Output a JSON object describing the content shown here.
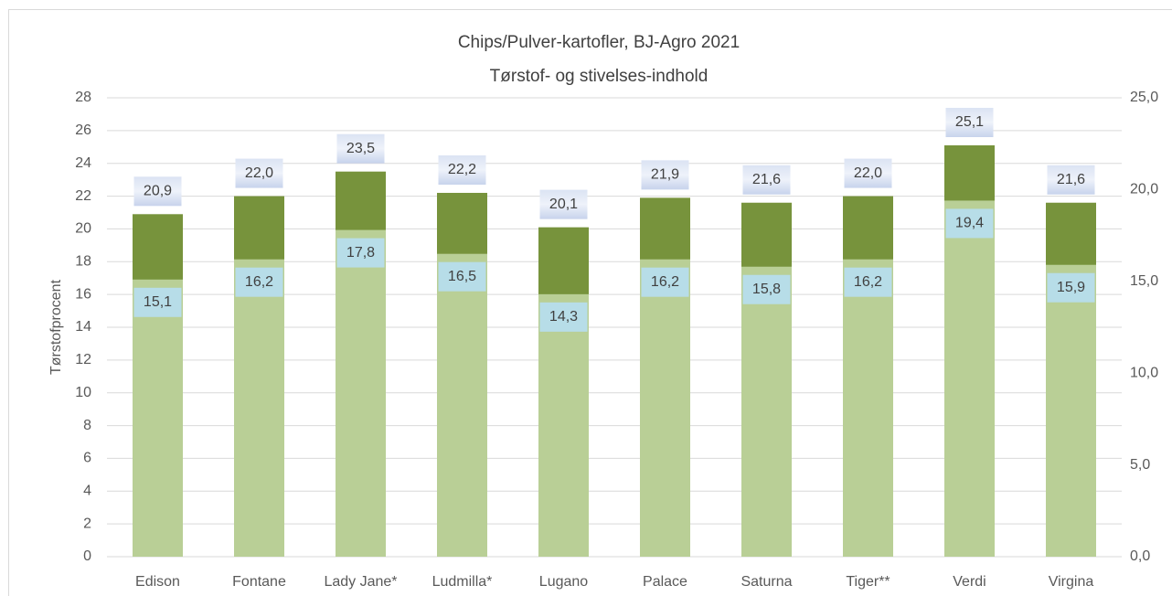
{
  "chart_data": {
    "type": "bar",
    "title": "Chips/Pulver-kartofler, BJ-Agro 2021",
    "subtitle": "Tørstof- og stivelses-indhold",
    "y_label": "Tørstofprocent",
    "categories": [
      "Edison",
      "Fontane",
      "Lady Jane*",
      "Ludmilla*",
      "Lugano",
      "Palace",
      "Saturna",
      "Tiger**",
      "Verdi",
      "Virgina"
    ],
    "series": [
      {
        "color": "#77933c",
        "axis": "y",
        "values": [
          20.9,
          22.0,
          23.5,
          22.2,
          20.1,
          21.9,
          21.6,
          22.0,
          25.1,
          21.6
        ],
        "value_labels": [
          "20,9",
          "22,0",
          "23,5",
          "22,2",
          "20,1",
          "21,9",
          "21,6",
          "22,0",
          "25,1",
          "21,6"
        ]
      },
      {
        "color": "#b9cf96",
        "axis": "y2",
        "values": [
          15.1,
          16.2,
          17.8,
          16.5,
          14.3,
          16.2,
          15.8,
          16.2,
          19.4,
          15.9
        ],
        "value_labels": [
          "15,1",
          "16,2",
          "17,8",
          "16,5",
          "14,3",
          "16,2",
          "15,8",
          "16,2",
          "19,4",
          "15,9"
        ]
      }
    ],
    "ylim": [
      0,
      28
    ],
    "yticks": [
      0,
      2,
      4,
      6,
      8,
      10,
      12,
      14,
      16,
      18,
      20,
      22,
      24,
      26,
      28
    ],
    "y2lim": [
      0,
      25
    ],
    "y2ticks": [
      {
        "value": 0,
        "label": "0,0"
      },
      {
        "value": 5,
        "label": "5,0"
      },
      {
        "value": 10,
        "label": "10,0"
      },
      {
        "value": 15,
        "label": "15,0"
      },
      {
        "value": 20,
        "label": "20,0"
      },
      {
        "value": 25,
        "label": "25,0"
      }
    ],
    "grid": true
  }
}
